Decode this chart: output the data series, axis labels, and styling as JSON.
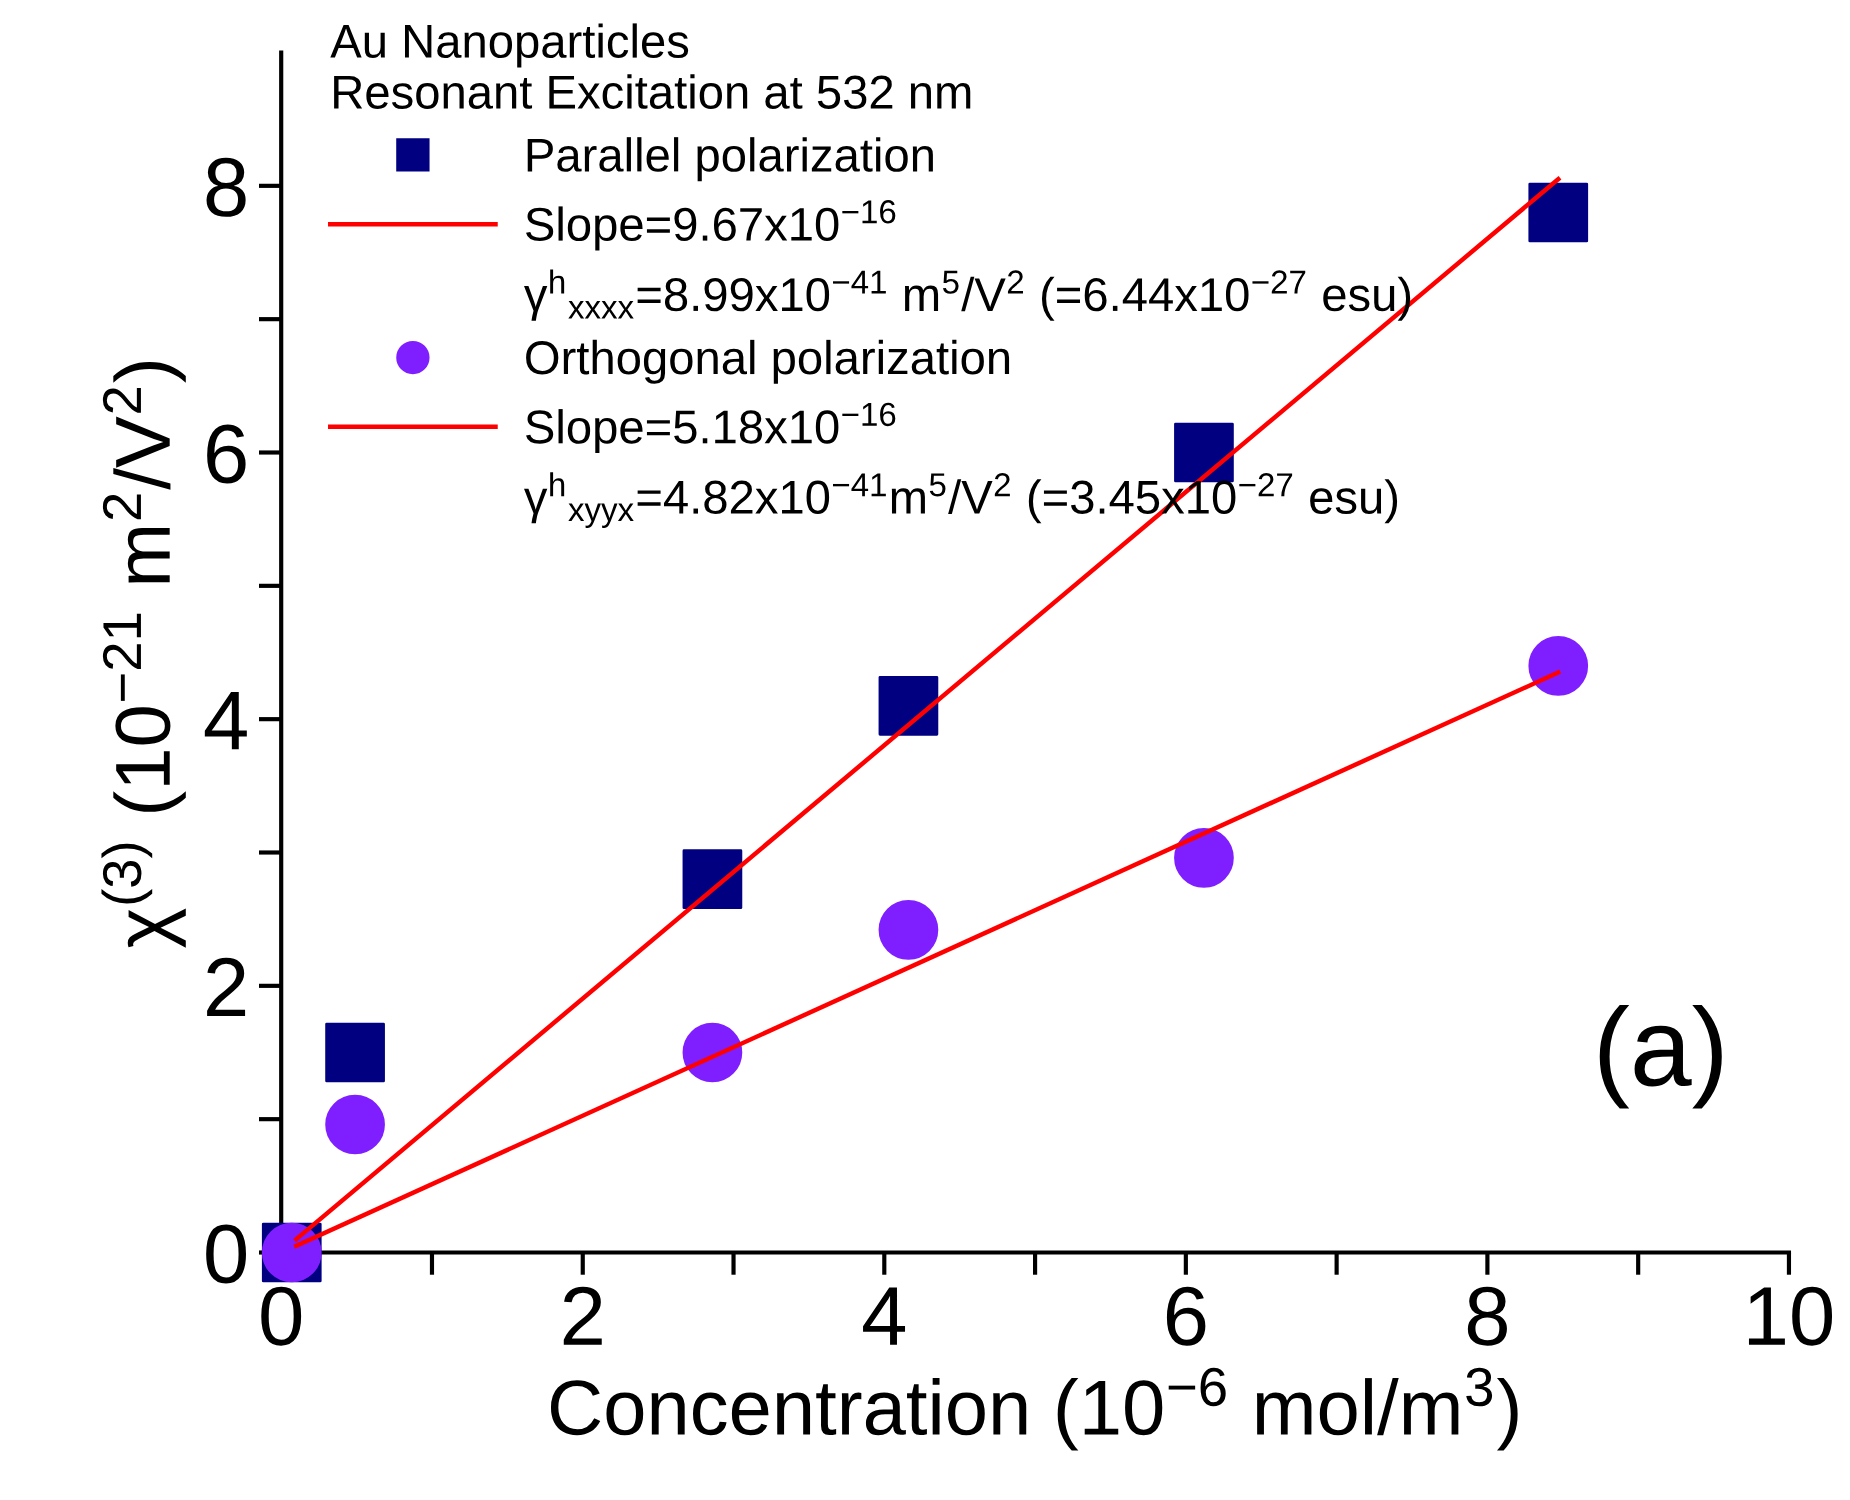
{
  "chart_data": {
    "type": "scatter",
    "xlabel": "Concentration (10$^{−6}$ mol/m$^{3}$)",
    "ylabel": "χ$^{(3)}$ (10$^{−21}$ m$^{2}$/V$^{2}$)",
    "legend_title": "Au Nanoparticles\nResonant Excitation at 532 nm",
    "series": [
      {
        "name": "Parallel polarization",
        "marker": "square",
        "color": "#000080",
        "x": [
          0.07,
          0.49,
          2.86,
          4.16,
          6.12,
          8.47
        ],
        "values": [
          0,
          1.5,
          2.8,
          4.1,
          6.0,
          7.8
        ]
      },
      {
        "name": "Slope=9.67x10$^{−16}$",
        "type": "line",
        "color": "#ff0000",
        "x": [
          0.1,
          8.47
        ],
        "values": [
          0.1,
          8.05
        ]
      },
      {
        "name": "Orthogonal polarization",
        "marker": "circle",
        "color": "#7f1fff",
        "x": [
          0.07,
          0.49,
          2.86,
          4.16,
          6.12,
          8.47
        ],
        "values": [
          0,
          0.96,
          1.5,
          2.42,
          2.96,
          4.4
        ]
      },
      {
        "name": "Slope=5.18x10$^{−16}$",
        "type": "line",
        "color": "#ff0000",
        "x": [
          0.1,
          8.47
        ],
        "values": [
          0.05,
          4.35
        ]
      }
    ],
    "annotations": [
      "γ$^{h}$$_{xxxx}$=8.99x10$^{−41}$ m$^{5}$/V$^{2}$ (=6.44x10$^{−27}$ esu)",
      "γ$^{h}$$_{xyyx}$=4.82x10$^{−41}$m$^{5}$/V$^{2}$ (=3.45x10$^{−27}$ esu)",
      "(a)"
    ],
    "xlim": [
      0,
      10
    ],
    "ylim": [
      0,
      9
    ],
    "xticks": [
      0,
      {
        "value": 1,
        "label": null
      },
      2,
      {
        "value": 3,
        "label": null
      },
      4,
      {
        "value": 5,
        "label": null
      },
      6,
      {
        "value": 7,
        "label": null
      },
      8,
      {
        "value": 9,
        "label": null
      },
      10
    ],
    "yticks": [
      0,
      {
        "value": 1,
        "label": null
      },
      2,
      {
        "value": 3,
        "label": null
      },
      4,
      {
        "value": 5,
        "label": null
      },
      6,
      {
        "value": 7,
        "label": null
      },
      8
    ],
    "grid": false,
    "legend": "top left"
  }
}
